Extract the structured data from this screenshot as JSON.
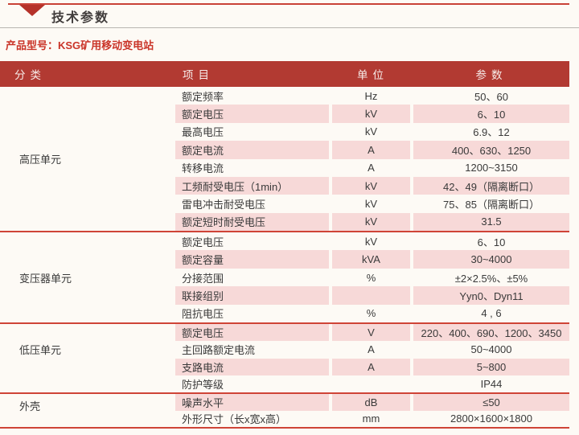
{
  "page": {
    "title": "技术参数",
    "product_model": "产品型号：KSG矿用移动变电站"
  },
  "icons": {
    "triangle_marker": "red-down-triangle"
  },
  "colors": {
    "header_band": "#b23a32",
    "row_pink": "#f7d9d8",
    "section_rule_red": "#cf4437",
    "accent_red": "#ca3428",
    "background": "#fdfaf5"
  },
  "table": {
    "headers": [
      "分类",
      "项目",
      "单位",
      "参数"
    ],
    "sections": [
      {
        "category": "高压单元",
        "rows": [
          {
            "item": "额定频率",
            "unit": "Hz",
            "param": "50、60"
          },
          {
            "item": "额定电压",
            "unit": "kV",
            "param": "6、10"
          },
          {
            "item": "最高电压",
            "unit": "kV",
            "param": "6.9、12"
          },
          {
            "item": "额定电流",
            "unit": "A",
            "param": "400、630、1250"
          },
          {
            "item": "转移电流",
            "unit": "A",
            "param": "1200~3150"
          },
          {
            "item": "工频耐受电压（1min）",
            "unit": "kV",
            "param": "42、49（隔离断口）"
          },
          {
            "item": "雷电冲击耐受电压",
            "unit": "kV",
            "param": "75、85（隔离断口）"
          },
          {
            "item": "额定短时耐受电压",
            "unit": "kV",
            "param": "31.5"
          }
        ]
      },
      {
        "category": "变压器单元",
        "rows": [
          {
            "item": "额定电压",
            "unit": "kV",
            "param": "6、10"
          },
          {
            "item": "额定容量",
            "unit": "kVA",
            "param": "30~4000"
          },
          {
            "item": "分接范围",
            "unit": "%",
            "param": "±2×2.5%、±5%"
          },
          {
            "item": "联接组别",
            "unit": "",
            "param": "Yyn0、Dyn11"
          },
          {
            "item": "阻抗电压",
            "unit": "%",
            "param": "4 , 6"
          }
        ]
      },
      {
        "category": "低压单元",
        "rows": [
          {
            "item": "额定电压",
            "unit": "V",
            "param": "220、400、690、1200、3450"
          },
          {
            "item": "主回路额定电流",
            "unit": "A",
            "param": "50~4000"
          },
          {
            "item": "支路电流",
            "unit": "A",
            "param": "5~800"
          },
          {
            "item": "防护等级",
            "unit": "",
            "param": "IP44"
          }
        ]
      },
      {
        "category": "外壳",
        "rows": [
          {
            "item": "噪声水平",
            "unit": "dB",
            "param": "≤50"
          },
          {
            "item": "外形尺寸（长x宽x高）",
            "unit": "mm",
            "param": "2800×1600×1800"
          }
        ]
      }
    ]
  }
}
